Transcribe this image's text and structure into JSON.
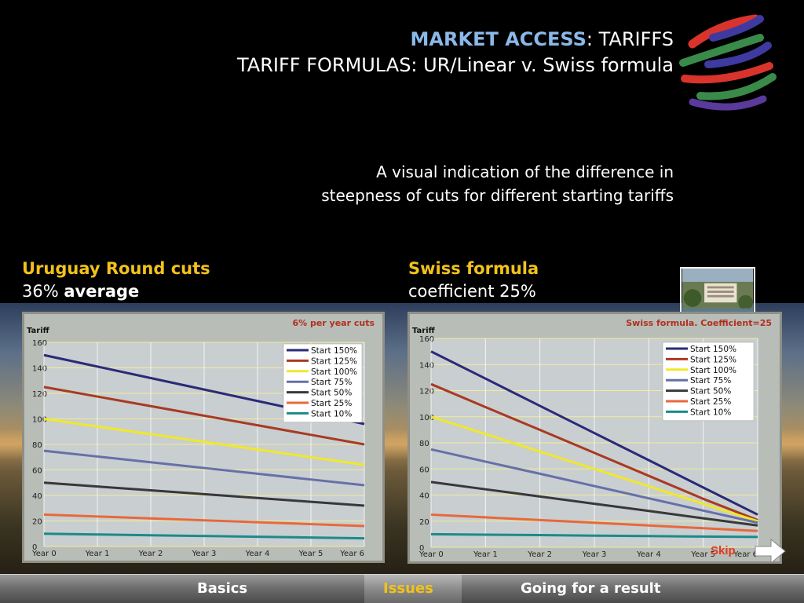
{
  "header": {
    "title_accent": "MARKET ACCESS",
    "title_rest": ": TARIFFS",
    "title_line2": "TARIFF FORMULAS: UR/Linear v. Swiss formula"
  },
  "subtitle": {
    "line1": "A visual indication of the difference in",
    "line2": "steepness of cuts for different starting tariffs"
  },
  "left_heading": {
    "title": "Uruguay Round cuts",
    "sub_plain": "36% ",
    "sub_bold": "average"
  },
  "right_heading": {
    "title": "Swiss formula",
    "sub": "coefficient 25%"
  },
  "nav": {
    "basics": "Basics",
    "issues": "Issues",
    "result": "Going for a result",
    "skip": "Skip"
  },
  "colors": {
    "start150": "#2a2a78",
    "start125": "#a83a22",
    "start100": "#f0e82a",
    "start75": "#6670a8",
    "start50": "#383838",
    "start25": "#e8683a",
    "start10": "#1c8a8a",
    "chart_title": "#b03020",
    "heading_accent": "#f2c21b",
    "title_accent": "#8ab8e8"
  },
  "chart_data": [
    {
      "type": "line",
      "title": "6% per year cuts",
      "ylabel": "Tariff",
      "xlabel": "",
      "ylim": [
        0,
        160
      ],
      "yticks": [
        "0",
        "20",
        "40",
        "60",
        "80",
        "100",
        "120",
        "140",
        "160"
      ],
      "categories": [
        "Year 0",
        "Year 1",
        "Year 2",
        "Year 3",
        "Year 4",
        "Year 5",
        "Year 6"
      ],
      "grid": true,
      "legend": "top-right",
      "series": [
        {
          "name": "Start 150%",
          "values": [
            150,
            141,
            132,
            123,
            114,
            105,
            96
          ]
        },
        {
          "name": "Start 125%",
          "values": [
            125,
            117.5,
            110,
            102.5,
            95,
            87.5,
            80
          ]
        },
        {
          "name": "Start 100%",
          "values": [
            100,
            94,
            88,
            82,
            76,
            70,
            64
          ]
        },
        {
          "name": "Start 75%",
          "values": [
            75,
            70.5,
            66,
            61.5,
            57,
            52.5,
            48
          ]
        },
        {
          "name": "Start 50%",
          "values": [
            50,
            47,
            44,
            41,
            38,
            35,
            32
          ]
        },
        {
          "name": "Start 25%",
          "values": [
            25,
            23.5,
            22,
            20.5,
            19,
            17.5,
            16
          ]
        },
        {
          "name": "Start 10%",
          "values": [
            10,
            9.4,
            8.8,
            8.2,
            7.6,
            7,
            6.4
          ]
        }
      ]
    },
    {
      "type": "line",
      "title": "Swiss formula. Coefficient=25",
      "ylabel": "Tariff",
      "xlabel": "",
      "ylim": [
        0,
        160
      ],
      "yticks": [
        "0",
        "20",
        "40",
        "60",
        "80",
        "100",
        "120",
        "140",
        "160"
      ],
      "categories": [
        "Year 0",
        "Year 1",
        "Year 2",
        "Year 3",
        "Year 4",
        "Year 5",
        "Year 6"
      ],
      "grid": true,
      "legend": "top-right",
      "series": [
        {
          "name": "Start 150%",
          "values": [
            150,
            129.2,
            108.3,
            87.5,
            66.7,
            45.8,
            25
          ]
        },
        {
          "name": "Start 125%",
          "values": [
            125,
            107.4,
            89.9,
            72.3,
            54.7,
            37.1,
            20.8
          ]
        },
        {
          "name": "Start 100%",
          "values": [
            100,
            86.7,
            73.3,
            60,
            46.7,
            33.3,
            20
          ]
        },
        {
          "name": "Start 75%",
          "values": [
            75,
            65.6,
            56.3,
            46.9,
            37.5,
            28.1,
            18.8
          ]
        },
        {
          "name": "Start 50%",
          "values": [
            50,
            44.4,
            38.9,
            33.3,
            27.8,
            22.2,
            16.7
          ]
        },
        {
          "name": "Start 25%",
          "values": [
            25,
            22.9,
            20.8,
            18.8,
            16.7,
            14.6,
            12.5
          ]
        },
        {
          "name": "Start 10%",
          "values": [
            10,
            9.6,
            9.3,
            8.9,
            8.6,
            8.2,
            7.9
          ]
        }
      ]
    }
  ]
}
